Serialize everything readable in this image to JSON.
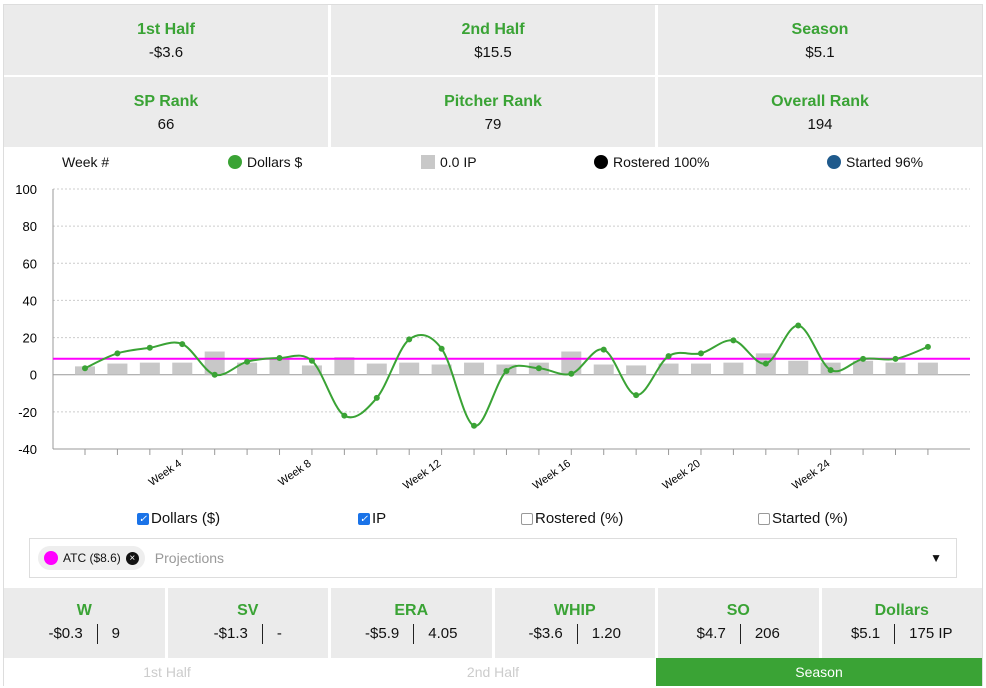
{
  "summary": [
    {
      "label": "1st Half",
      "value": "-$3.6"
    },
    {
      "label": "2nd Half",
      "value": "$15.5"
    },
    {
      "label": "Season",
      "value": "$5.1"
    },
    {
      "label": "SP Rank",
      "value": "66"
    },
    {
      "label": "Pitcher Rank",
      "value": "79"
    },
    {
      "label": "Overall Rank",
      "value": "194"
    }
  ],
  "legend": {
    "week": "Week #",
    "dollars": "Dollars $",
    "ip": "0.0 IP",
    "rostered": "Rostered 100%",
    "started": "Started 96%"
  },
  "colors": {
    "green": "#3aa335",
    "bars": "#c8c8c8",
    "projection": "#ff00ff",
    "rostered": "#000000",
    "started": "#1f5a8c"
  },
  "chart_data": {
    "type": "bar+line",
    "x": [
      1,
      2,
      3,
      4,
      5,
      6,
      7,
      8,
      9,
      10,
      11,
      12,
      13,
      14,
      15,
      16,
      17,
      18,
      19,
      20,
      21,
      22,
      23,
      24,
      25,
      26,
      27
    ],
    "x_tick_labels": [
      "Week 4",
      "Week 8",
      "Week 12",
      "Week 16",
      "Week 20",
      "Week 24"
    ],
    "x_tick_label_weeks": [
      4,
      8,
      12,
      16,
      20,
      24
    ],
    "y_ticks": [
      100,
      80,
      60,
      40,
      20,
      0,
      -20,
      -40
    ],
    "ylim": [
      -40,
      100
    ],
    "grid": true,
    "series": [
      {
        "name": "Dollars $",
        "type": "line",
        "values": [
          3.5,
          11.5,
          14.5,
          16.5,
          0,
          7,
          9,
          7.5,
          -22,
          -12.5,
          19,
          14,
          -27.5,
          2,
          3.5,
          0.5,
          13.5,
          -11,
          10,
          11.5,
          18.5,
          6,
          26.5,
          2.5,
          8.5,
          8.5,
          15
        ]
      },
      {
        "name": "IP",
        "type": "bar",
        "values": [
          4.5,
          6,
          6.5,
          6.5,
          12.5,
          6.5,
          9,
          5,
          9.5,
          6,
          6.5,
          5.5,
          6.5,
          5.5,
          6.5,
          12.5,
          5.5,
          5,
          6,
          6,
          6.5,
          11.5,
          7.5,
          6.5,
          7.5,
          6.5,
          6.5
        ]
      }
    ],
    "reference_line": {
      "label": "ATC ($8.6)",
      "value": 8.6
    }
  },
  "checks": [
    {
      "label": "Dollars ($)",
      "checked": true
    },
    {
      "label": "IP",
      "checked": true
    },
    {
      "label": "Rostered (%)",
      "checked": false
    },
    {
      "label": "Started (%)",
      "checked": false
    }
  ],
  "projections": {
    "chip": "ATC ($8.6)",
    "placeholder": "Projections",
    "close": "×",
    "caret": "▼"
  },
  "stats": [
    {
      "label": "W",
      "a": "-$0.3",
      "b": "9"
    },
    {
      "label": "SV",
      "a": "-$1.3",
      "b": "-"
    },
    {
      "label": "ERA",
      "a": "-$5.9",
      "b": "4.05"
    },
    {
      "label": "WHIP",
      "a": "-$3.6",
      "b": "1.20"
    },
    {
      "label": "SO",
      "a": "$4.7",
      "b": "206"
    },
    {
      "label": "Dollars",
      "a": "$5.1",
      "b": "175 IP"
    }
  ],
  "tabs": [
    "1st Half",
    "2nd Half",
    "Season"
  ]
}
